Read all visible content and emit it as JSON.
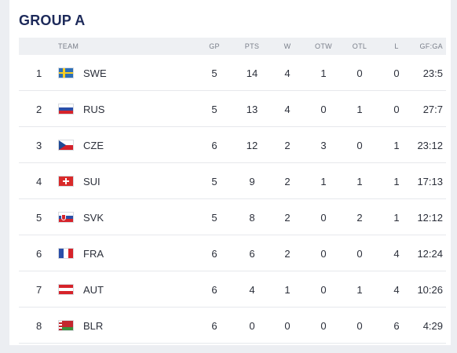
{
  "group": {
    "title": "GROUP A"
  },
  "columns": {
    "team": "TEAM",
    "gp": "GP",
    "pts": "PTS",
    "w": "W",
    "otw": "OTW",
    "otl": "OTL",
    "l": "L",
    "gfga": "GF:GA"
  },
  "standings": [
    {
      "rank": "1",
      "team": "SWE",
      "flag": "sweden-flag-icon",
      "gp": "5",
      "pts": "14",
      "w": "4",
      "otw": "1",
      "otl": "0",
      "l": "0",
      "gfga": "23:5"
    },
    {
      "rank": "2",
      "team": "RUS",
      "flag": "russia-flag-icon",
      "gp": "5",
      "pts": "13",
      "w": "4",
      "otw": "0",
      "otl": "1",
      "l": "0",
      "gfga": "27:7"
    },
    {
      "rank": "3",
      "team": "CZE",
      "flag": "czech-flag-icon",
      "gp": "6",
      "pts": "12",
      "w": "2",
      "otw": "3",
      "otl": "0",
      "l": "1",
      "gfga": "23:12"
    },
    {
      "rank": "4",
      "team": "SUI",
      "flag": "switzerland-flag-icon",
      "gp": "5",
      "pts": "9",
      "w": "2",
      "otw": "1",
      "otl": "1",
      "l": "1",
      "gfga": "17:13"
    },
    {
      "rank": "5",
      "team": "SVK",
      "flag": "slovakia-flag-icon",
      "gp": "5",
      "pts": "8",
      "w": "2",
      "otw": "0",
      "otl": "2",
      "l": "1",
      "gfga": "12:12"
    },
    {
      "rank": "6",
      "team": "FRA",
      "flag": "france-flag-icon",
      "gp": "6",
      "pts": "6",
      "w": "2",
      "otw": "0",
      "otl": "0",
      "l": "4",
      "gfga": "12:24"
    },
    {
      "rank": "7",
      "team": "AUT",
      "flag": "austria-flag-icon",
      "gp": "6",
      "pts": "4",
      "w": "1",
      "otw": "0",
      "otl": "1",
      "l": "4",
      "gfga": "10:26"
    },
    {
      "rank": "8",
      "team": "BLR",
      "flag": "belarus-flag-icon",
      "gp": "6",
      "pts": "0",
      "w": "0",
      "otw": "0",
      "otl": "0",
      "l": "6",
      "gfga": "4:29"
    }
  ],
  "colors": {
    "title": "#1d2a5a",
    "header_bg": "#eef0f3",
    "page_bg": "#eceef2"
  }
}
